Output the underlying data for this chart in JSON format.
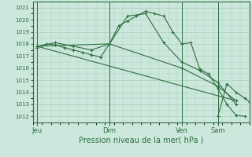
{
  "background_color": "#cce8dc",
  "grid_color": "#aaccbb",
  "line_color": "#2d6e3e",
  "title": "Pression niveau de la mer( hPa )",
  "ylim": [
    1011.5,
    1021.5
  ],
  "yticks": [
    1012,
    1013,
    1014,
    1015,
    1016,
    1017,
    1018,
    1019,
    1020,
    1021
  ],
  "day_labels": [
    "Jeu",
    "Dim",
    "Ven",
    "Sam"
  ],
  "day_positions": [
    0,
    48,
    96,
    120
  ],
  "xlim": [
    -3,
    141
  ],
  "series": [
    {
      "x": [
        0,
        6,
        12,
        18,
        24,
        30,
        36,
        42,
        48,
        54,
        60,
        66,
        72,
        78,
        84,
        90,
        96,
        102,
        108,
        114,
        120,
        126,
        132,
        138
      ],
      "y": [
        1017.7,
        1018.0,
        1017.9,
        1017.7,
        1017.5,
        1017.3,
        1017.1,
        1016.9,
        1018.0,
        1019.5,
        1019.9,
        1020.3,
        1020.7,
        1020.5,
        1020.3,
        1019.0,
        1018.0,
        1018.1,
        1015.9,
        1015.5,
        1014.3,
        1013.0,
        1012.1,
        1012.0
      ]
    },
    {
      "x": [
        0,
        12,
        24,
        36,
        48,
        60,
        72,
        84,
        96,
        108,
        120,
        132
      ],
      "y": [
        1017.8,
        1018.1,
        1017.8,
        1017.5,
        1018.0,
        1020.3,
        1020.5,
        1018.1,
        1016.5,
        1015.8,
        1014.8,
        1013.0
      ]
    },
    {
      "x": [
        0,
        48,
        96,
        120,
        132
      ],
      "y": [
        1017.8,
        1018.0,
        1016.0,
        1014.5,
        1013.3
      ]
    },
    {
      "x": [
        0,
        132
      ],
      "y": [
        1017.8,
        1013.3
      ]
    },
    {
      "x": [
        120,
        126,
        132,
        138,
        141
      ],
      "y": [
        1012.0,
        1014.7,
        1014.0,
        1013.5,
        1013.2
      ]
    }
  ]
}
